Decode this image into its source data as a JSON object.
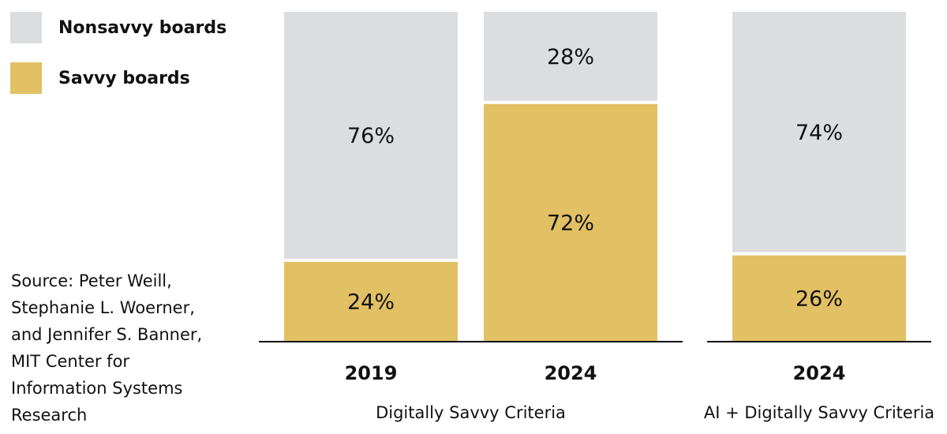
{
  "chart_data": {
    "type": "bar",
    "stacked": true,
    "groups": [
      {
        "label": "Digitally Savvy Criteria",
        "categories": [
          "2019",
          "2024"
        ]
      },
      {
        "label": "AI + Digitally Savvy Criteria",
        "categories": [
          "2024"
        ]
      }
    ],
    "series": [
      {
        "name": "Savvy boards",
        "color": "#e2c064",
        "values": [
          24,
          72,
          26
        ],
        "value_labels": [
          "24%",
          "72%",
          "26%"
        ]
      },
      {
        "name": "Nonsavvy boards",
        "color": "#dcdddf",
        "values": [
          76,
          28,
          74
        ],
        "value_labels": [
          "76%",
          "28%",
          "74%"
        ]
      }
    ],
    "ylim": [
      0,
      100
    ],
    "source": "Source: Peter Weill, Stephanie L. Woerner, and Jennifer S. Banner, MIT Center for Information Systems Research"
  }
}
